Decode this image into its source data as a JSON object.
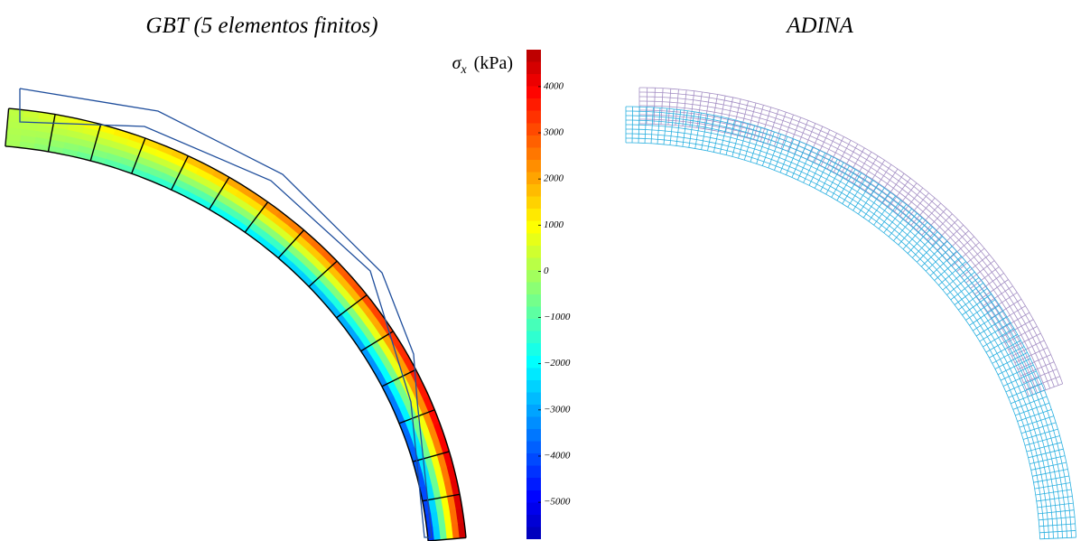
{
  "chart_data": {
    "type": "contour",
    "panels": [
      {
        "title": "GBT (5 elementos finitos)"
      },
      {
        "title": "ADINA"
      }
    ],
    "colorbar": {
      "label_symbol": "σ",
      "label_sub": "x",
      "label_unit": "(kPa)",
      "lim": [
        -5800,
        4800
      ],
      "ticks": [
        4000,
        3000,
        2000,
        1000,
        0,
        {
          "value": -1000,
          "label": "−1000"
        },
        {
          "value": -2000,
          "label": "−2000"
        },
        {
          "value": -3000,
          "label": "−3000"
        },
        {
          "value": -4000,
          "label": "−4000"
        },
        {
          "value": -5000,
          "label": "−5000"
        }
      ]
    }
  }
}
